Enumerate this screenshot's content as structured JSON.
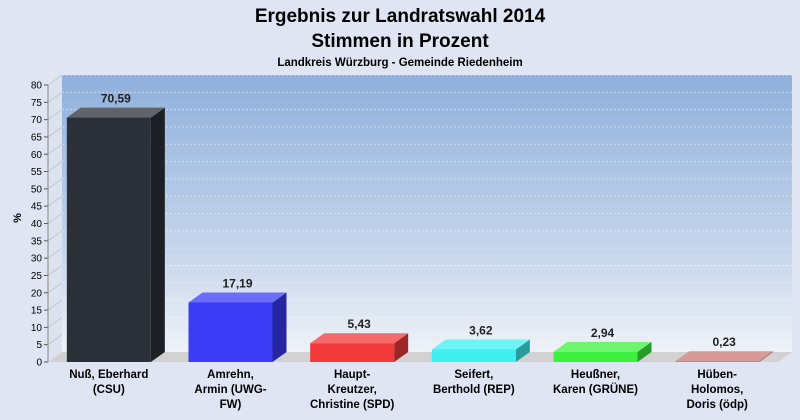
{
  "chart_data": {
    "type": "bar",
    "title": "Ergebnis zur Landratswahl 2014",
    "title2": "Stimmen in Prozent",
    "subtitle": "Landkreis Würzburg - Gemeinde Riedenheim",
    "ylabel": "%",
    "ylim": [
      0,
      80
    ],
    "ytick_step": 5,
    "grid": true,
    "categories": [
      [
        "Nuß, Eberhard",
        "(CSU)"
      ],
      [
        "Amrehn,",
        "Armin (UWG-",
        "FW)"
      ],
      [
        "Haupt-",
        "Kreutzer,",
        "Christine (SPD)"
      ],
      [
        "Seifert,",
        "Berthold (REP)"
      ],
      [
        "Heußner,",
        "Karen (GRÜNE)"
      ],
      [
        "Hüben-",
        "Holomos,",
        "Doris (ödp)"
      ]
    ],
    "values": [
      70.59,
      17.19,
      5.43,
      3.62,
      2.94,
      0.23
    ],
    "value_labels": [
      "70,59",
      "17,19",
      "5,43",
      "3,62",
      "2,94",
      "0,23"
    ],
    "colors": [
      "#2b2f38",
      "#3a3cf6",
      "#f23a3a",
      "#3ef0f0",
      "#3ef03e",
      "#c87878"
    ]
  }
}
